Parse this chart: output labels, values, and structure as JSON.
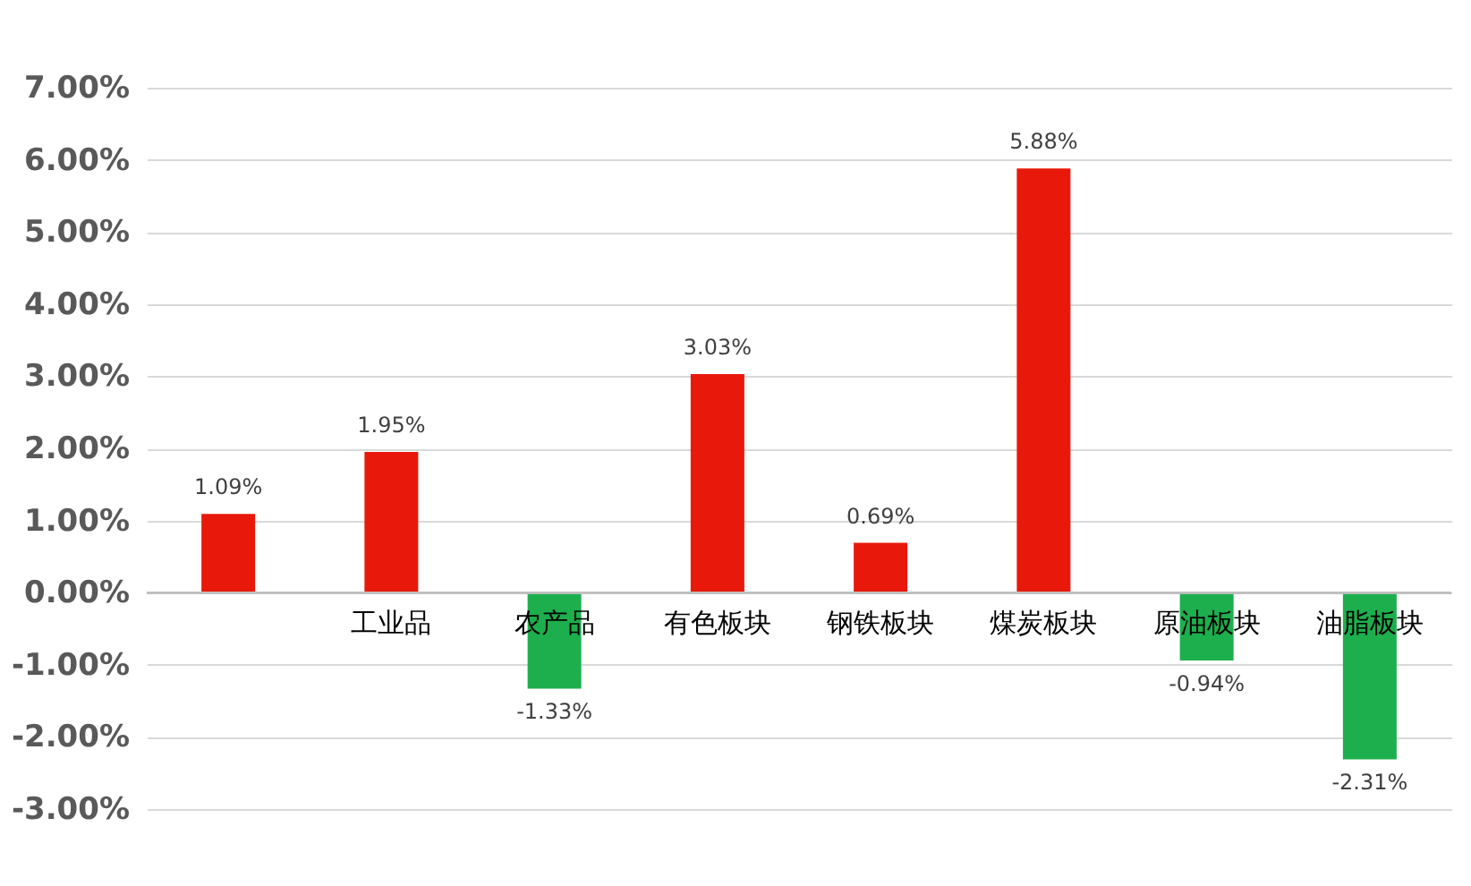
{
  "chart_data": {
    "type": "bar",
    "categories": [
      null,
      "工业品",
      "农产品",
      "有色板块",
      "钢铁板块",
      "煤炭板块",
      "原油板块",
      "油脂板块"
    ],
    "values": [
      1.09,
      1.95,
      -1.33,
      3.03,
      0.69,
      5.88,
      -0.94,
      -2.31
    ],
    "colors": [
      "#e8190b",
      "#e8190b",
      "#1daf4d",
      "#e8190b",
      "#e8190b",
      "#e8190b",
      "#1daf4d",
      "#1daf4d"
    ],
    "value_labels": [
      "1.09%",
      "1.95%",
      "-1.33%",
      "3.03%",
      "0.69%",
      "5.88%",
      "-0.94%",
      "-2.31%"
    ],
    "ylim": [
      -3,
      7
    ],
    "yticks": [
      {
        "value": -3,
        "label": "-3.00%"
      },
      {
        "value": -2,
        "label": "-2.00%"
      },
      {
        "value": -1,
        "label": "-1.00%"
      },
      {
        "value": 0,
        "label": "0.00%"
      },
      {
        "value": 1,
        "label": "1.00%"
      },
      {
        "value": 2,
        "label": "2.00%"
      },
      {
        "value": 3,
        "label": "3.00%"
      },
      {
        "value": 4,
        "label": "4.00%"
      },
      {
        "value": 5,
        "label": "5.00%"
      },
      {
        "value": 6,
        "label": "6.00%"
      },
      {
        "value": 7,
        "label": "7.00%"
      }
    ],
    "grid": "y"
  }
}
